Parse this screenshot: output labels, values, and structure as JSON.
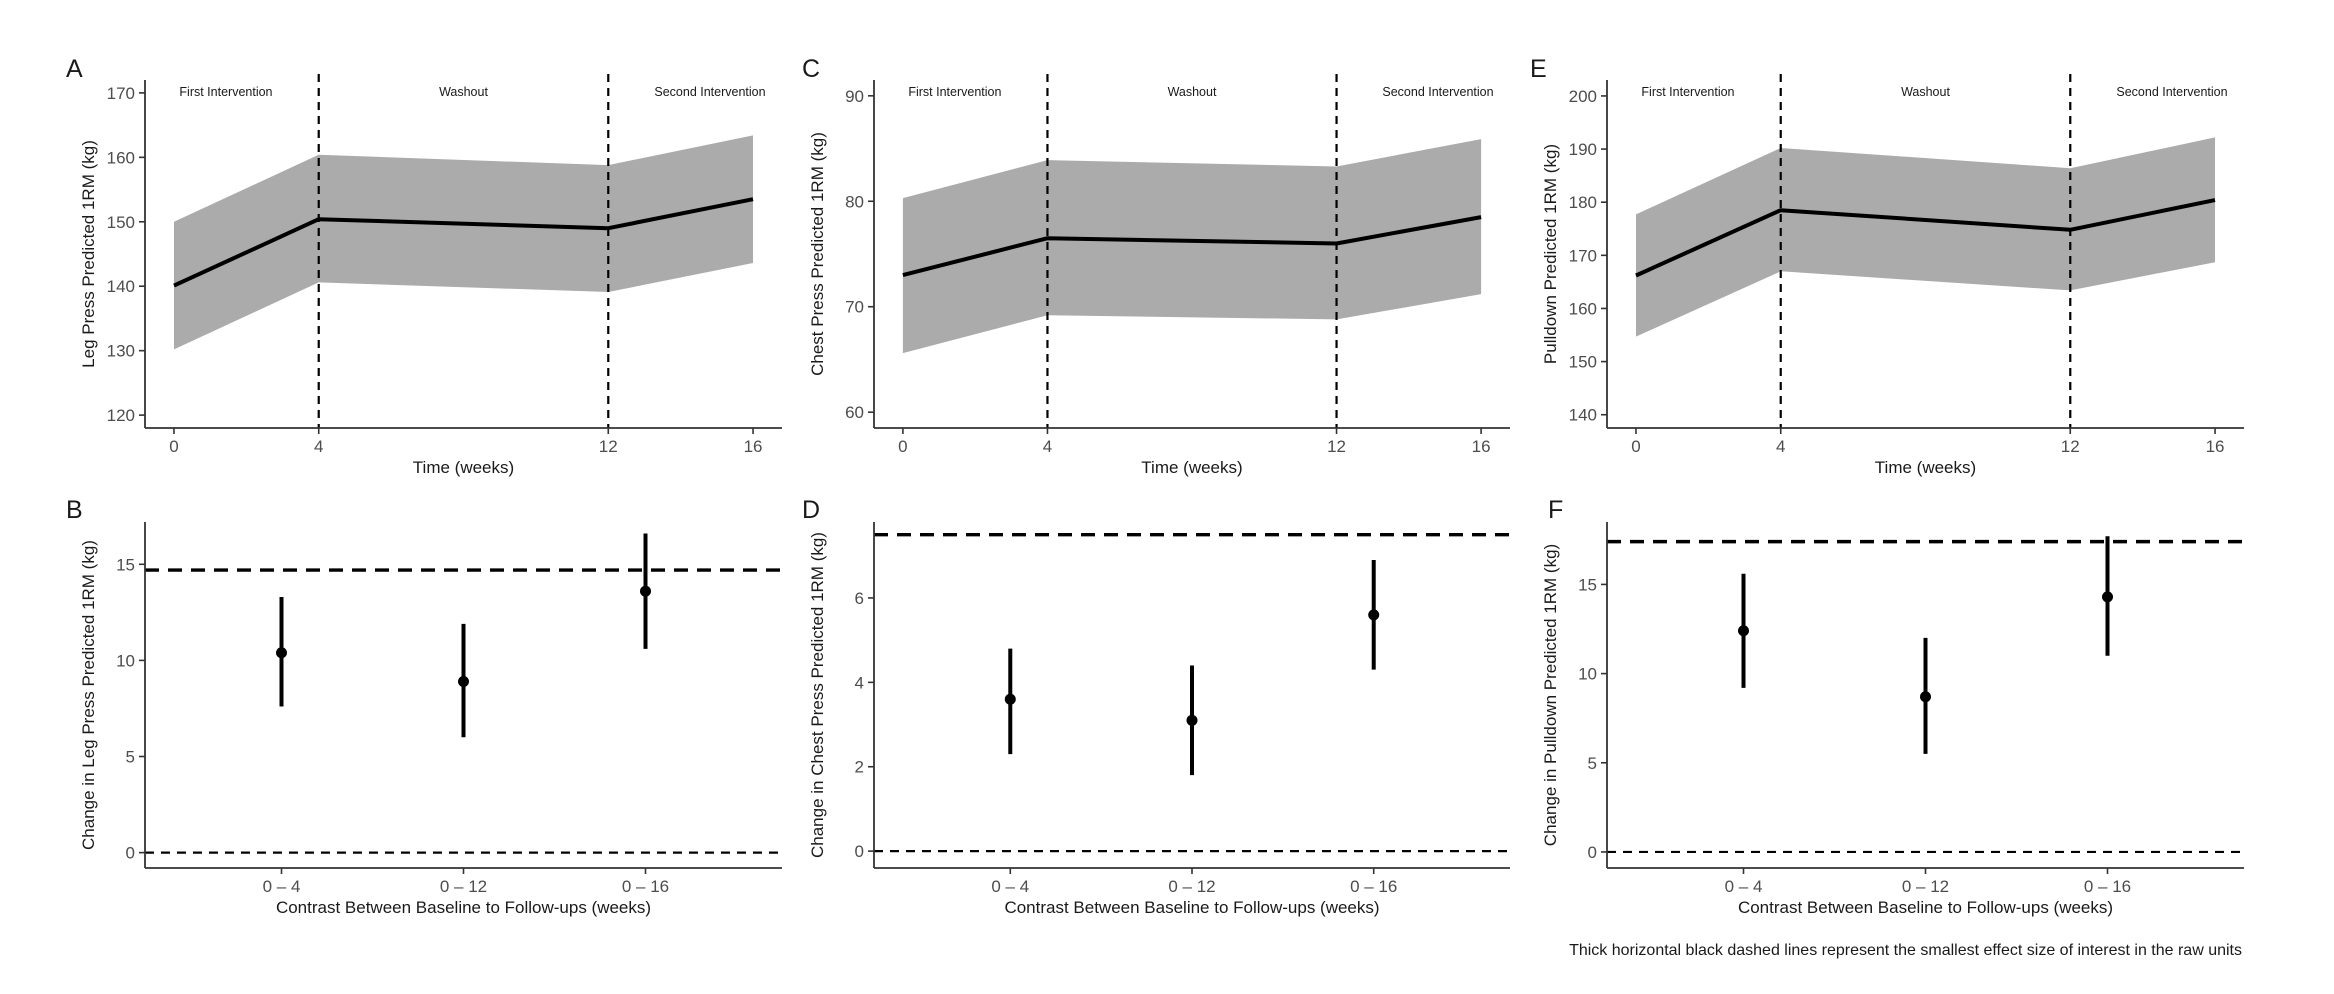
{
  "chart_data": [
    {
      "panel": "A",
      "type": "line",
      "xlabel": "Time (weeks)",
      "ylabel": "Leg Press Predicted 1RM (kg)",
      "x": [
        0,
        4,
        12,
        16
      ],
      "x_ticks": [
        "0",
        "4",
        "12",
        "16"
      ],
      "y": [
        140.1,
        150.4,
        149.0,
        153.5
      ],
      "lower": [
        130.2,
        140.6,
        139.1,
        143.6
      ],
      "upper": [
        150.0,
        160.4,
        158.8,
        163.4
      ],
      "ylim": [
        118,
        172
      ],
      "y_ticks": [
        120,
        130,
        140,
        150,
        160,
        170
      ],
      "xlim": [
        -0.8,
        16.8
      ],
      "vlines": [
        4,
        12
      ],
      "phase_labels": [
        "First Intervention",
        "Washout",
        "Second Intervention"
      ],
      "grid": false
    },
    {
      "panel": "C",
      "type": "line",
      "xlabel": "Time (weeks)",
      "ylabel": "Chest Press Predicted 1RM (kg)",
      "x": [
        0,
        4,
        12,
        16
      ],
      "x_ticks": [
        "0",
        "4",
        "12",
        "16"
      ],
      "y": [
        73.0,
        76.5,
        76.0,
        78.5
      ],
      "lower": [
        65.6,
        69.2,
        68.8,
        71.2
      ],
      "upper": [
        80.3,
        83.9,
        83.3,
        85.9
      ],
      "ylim": [
        58.5,
        91.5
      ],
      "y_ticks": [
        60,
        70,
        80,
        90
      ],
      "xlim": [
        -0.8,
        16.8
      ],
      "vlines": [
        4,
        12
      ],
      "phase_labels": [
        "First Intervention",
        "Washout",
        "Second Intervention"
      ],
      "grid": false
    },
    {
      "panel": "E",
      "type": "line",
      "xlabel": "Time (weeks)",
      "ylabel": "Pulldown Predicted 1RM (kg)",
      "x": [
        0,
        4,
        12,
        16
      ],
      "x_ticks": [
        "0",
        "4",
        "12",
        "16"
      ],
      "y": [
        166.2,
        178.5,
        174.8,
        180.4
      ],
      "lower": [
        154.7,
        167.0,
        163.4,
        168.7
      ],
      "upper": [
        177.7,
        190.2,
        186.4,
        192.2
      ],
      "ylim": [
        137.5,
        203
      ],
      "y_ticks": [
        140,
        150,
        160,
        170,
        180,
        190,
        200
      ],
      "xlim": [
        -0.8,
        16.8
      ],
      "vlines": [
        4,
        12
      ],
      "phase_labels": [
        "First Intervention",
        "Washout",
        "Second Intervention"
      ],
      "grid": false
    },
    {
      "panel": "B",
      "type": "scatter",
      "xlabel": "Contrast Between Baseline to Follow-ups (weeks)",
      "ylabel": "Change in Leg Press Predicted 1RM (kg)",
      "categories": [
        "0 – 4",
        "0 – 12",
        "0 – 16"
      ],
      "values": [
        10.4,
        8.9,
        13.6
      ],
      "lower": [
        7.6,
        6.0,
        10.6
      ],
      "upper": [
        13.3,
        11.9,
        16.6
      ],
      "ylim": [
        -0.8,
        17.2
      ],
      "y_ticks": [
        0,
        5,
        10,
        15
      ],
      "sesoi": 14.7,
      "zero_line": 0,
      "grid": false
    },
    {
      "panel": "D",
      "type": "scatter",
      "xlabel": "Contrast Between Baseline to Follow-ups (weeks)",
      "ylabel": "Change in Chest Press Predicted 1RM (kg)",
      "categories": [
        "0 – 4",
        "0 – 12",
        "0 – 16"
      ],
      "values": [
        3.6,
        3.1,
        5.6
      ],
      "lower": [
        2.3,
        1.8,
        4.3
      ],
      "upper": [
        4.8,
        4.4,
        6.9
      ],
      "ylim": [
        -0.4,
        7.8
      ],
      "y_ticks": [
        0,
        2,
        4,
        6
      ],
      "sesoi": 7.5,
      "zero_line": 0,
      "grid": false
    },
    {
      "panel": "F",
      "type": "scatter",
      "xlabel": "Contrast Between Baseline to Follow-ups (weeks)",
      "ylabel": "Change in Pulldown Predicted 1RM (kg)",
      "categories": [
        "0 – 4",
        "0 – 12",
        "0 – 16"
      ],
      "values": [
        12.4,
        8.7,
        14.3
      ],
      "lower": [
        9.2,
        5.5,
        11.0
      ],
      "upper": [
        15.6,
        12.0,
        17.7
      ],
      "ylim": [
        -0.9,
        18.5
      ],
      "y_ticks": [
        0,
        5,
        10,
        15
      ],
      "sesoi": 17.4,
      "zero_line": 0,
      "grid": false
    }
  ],
  "caption": "Thick horizontal black dashed lines represent the smallest effect size of interest in the raw units",
  "colors": {
    "ribbon": "#ababab",
    "line": "#000000",
    "axis": "#333333",
    "tick_label": "#4d4d4d"
  }
}
